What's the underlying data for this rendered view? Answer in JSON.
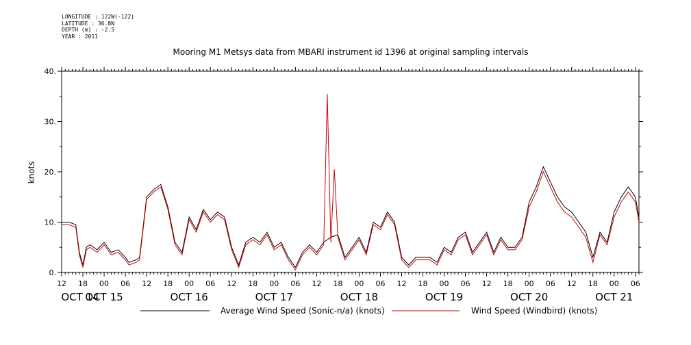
{
  "metadata": {
    "longitude": "LONGITUDE : 122W(-122)",
    "latitude": "LATITUDE : 36.8N",
    "depth": "DEPTH (m) : -2.5",
    "year": "YEAR : 2011"
  },
  "chart_data": {
    "type": "line",
    "title": "Mooring M1 Metsys data from MBARI instrument id 1396 at original sampling intervals",
    "xlabel": "",
    "ylabel": "knots",
    "ylim": [
      0,
      40
    ],
    "yticks": [
      0,
      10,
      20,
      30,
      40
    ],
    "ytick_labels": [
      "0.",
      "10.",
      "20.",
      "30.",
      "40."
    ],
    "x_unit": "hours since OCT 14 00:00",
    "xlim": [
      12,
      175
    ],
    "hour_tick_labels": [
      "12",
      "18",
      "00",
      "06",
      "12",
      "18",
      "00",
      "06",
      "12",
      "18",
      "00",
      "06",
      "12",
      "18",
      "00",
      "06",
      "12",
      "18",
      "00",
      "06",
      "12",
      "18",
      "00",
      "06",
      "12",
      "18",
      "00",
      "06"
    ],
    "day_labels": [
      "OCT 14",
      "OCT 15",
      "OCT 16",
      "OCT 17",
      "OCT 18",
      "OCT 19",
      "OCT 20",
      "OCT 21"
    ],
    "grid": false,
    "legend_position": "bottom",
    "series": [
      {
        "name": "Average Wind Speed (Sonic-n/a) (knots)",
        "color": "#000000",
        "x": [
          12,
          14,
          16,
          17,
          18,
          19,
          20,
          22,
          24,
          26,
          28,
          30,
          31,
          33,
          34,
          36,
          38,
          40,
          42,
          44,
          46,
          48,
          50,
          52,
          54,
          56,
          58,
          60,
          62,
          64,
          66,
          68,
          70,
          72,
          74,
          76,
          78,
          80,
          82,
          84,
          86,
          88,
          90,
          92,
          94,
          96,
          98,
          100,
          102,
          104,
          106,
          108,
          110,
          112,
          114,
          116,
          118,
          120,
          122,
          124,
          126,
          128,
          130,
          132,
          134,
          136,
          138,
          140,
          142,
          144,
          146,
          148,
          150,
          152,
          154,
          156,
          158,
          160,
          162,
          164,
          166,
          168,
          170,
          172,
          174,
          175
        ],
        "y": [
          10,
          10,
          9.5,
          4,
          1.5,
          5,
          5.5,
          4.5,
          6,
          4,
          4.5,
          3,
          2,
          2.5,
          3,
          15,
          16.5,
          17.5,
          13,
          6,
          4,
          11,
          8.5,
          12.5,
          10.5,
          12,
          11,
          5,
          1.5,
          6,
          7,
          6,
          8,
          5,
          6,
          3,
          1,
          4,
          5.5,
          4,
          6,
          7,
          7.5,
          3,
          5,
          7,
          4,
          10,
          9,
          12,
          10,
          3,
          1.5,
          3,
          3,
          3,
          2,
          5,
          4,
          7,
          8,
          4,
          6,
          8,
          4,
          7,
          5,
          5,
          7,
          14,
          17,
          21,
          18,
          15,
          13,
          12,
          10,
          8,
          3,
          8,
          6,
          12,
          15,
          17,
          15,
          11
        ]
      },
      {
        "name": "Wind Speed (Windbird) (knots)",
        "color": "#cc0000",
        "x": [
          12,
          14,
          16,
          17,
          18,
          19,
          20,
          22,
          24,
          26,
          28,
          30,
          31,
          33,
          34,
          36,
          38,
          40,
          42,
          44,
          46,
          48,
          50,
          52,
          54,
          56,
          58,
          60,
          62,
          64,
          66,
          68,
          70,
          72,
          74,
          76,
          78,
          80,
          82,
          84,
          86,
          87,
          88,
          89,
          90,
          92,
          94,
          96,
          98,
          100,
          102,
          104,
          106,
          108,
          110,
          112,
          114,
          116,
          118,
          120,
          122,
          124,
          126,
          128,
          130,
          132,
          134,
          136,
          138,
          140,
          142,
          144,
          146,
          148,
          150,
          152,
          154,
          156,
          158,
          160,
          162,
          164,
          166,
          168,
          170,
          172,
          174,
          175
        ],
        "y": [
          9.5,
          9.5,
          9,
          3.5,
          1,
          4.5,
          5,
          4,
          5.5,
          3.5,
          4,
          2.5,
          1.5,
          2,
          2.5,
          14.5,
          16,
          17,
          12.5,
          5.5,
          3.5,
          10.5,
          8,
          12,
          10,
          11.5,
          10.5,
          4.5,
          1,
          5.5,
          6.5,
          5.5,
          7.5,
          4.5,
          5.5,
          2.5,
          0.5,
          3.5,
          5,
          3.5,
          5.5,
          35.5,
          6,
          20.5,
          7,
          2.5,
          4.5,
          6.5,
          3.5,
          9.5,
          8.5,
          11.5,
          9.5,
          2.5,
          1,
          2.5,
          2.5,
          2.5,
          1.5,
          4.5,
          3.5,
          6.5,
          7.5,
          3.5,
          5.5,
          7.5,
          3.5,
          6.5,
          4.5,
          4.5,
          6.5,
          13,
          16,
          20,
          17,
          14,
          12,
          11,
          9,
          7,
          2,
          7.5,
          5.5,
          11,
          14,
          16,
          14,
          10
        ]
      }
    ]
  }
}
